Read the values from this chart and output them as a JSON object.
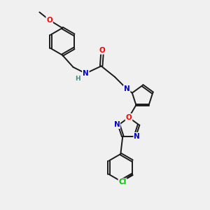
{
  "background_color": "#f0f0f0",
  "bond_color": "#1a1a1a",
  "atom_colors": {
    "N": "#0000cc",
    "O": "#ff0000",
    "Cl": "#00bb00",
    "H": "#3a8a8a",
    "C": "#1a1a1a"
  }
}
